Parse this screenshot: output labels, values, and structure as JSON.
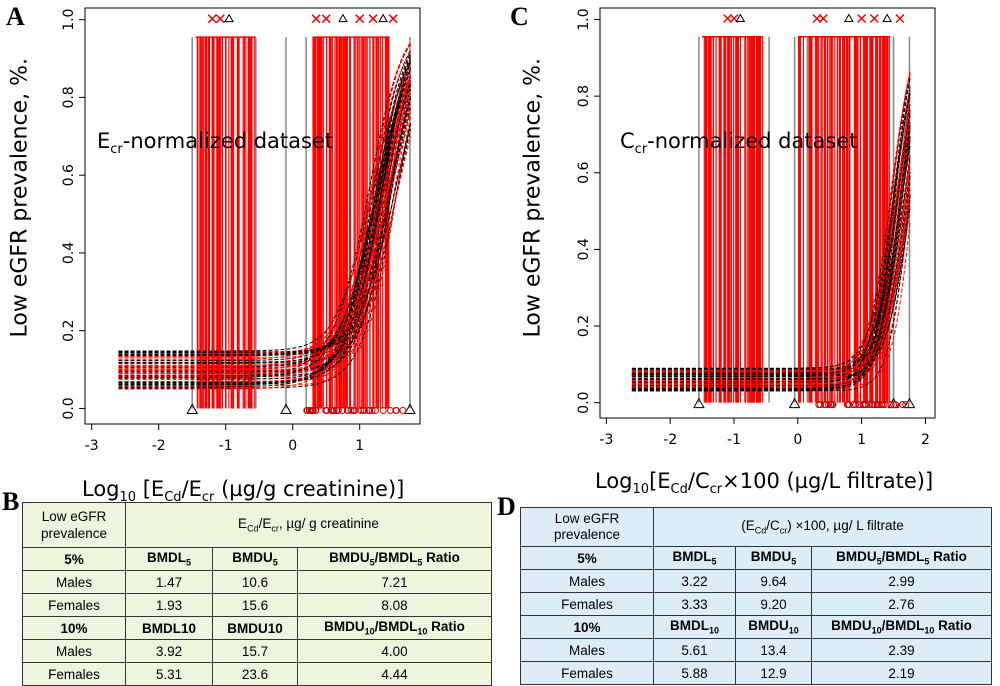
{
  "panels": {
    "a": {
      "letter": "A",
      "dataset_label_main": "E",
      "dataset_label_sub": "cr",
      "dataset_label_rest": "-normalized dataset"
    },
    "c": {
      "letter": "C",
      "dataset_label_main": "C",
      "dataset_label_sub": "cr",
      "dataset_label_rest": "-normalized dataset"
    },
    "b": {
      "letter": "B"
    },
    "d": {
      "letter": "D"
    }
  },
  "axis_labels": {
    "y": "Low eGFR prevalence, %.",
    "a_x": {
      "prefix": "Log",
      "sub10": "10",
      "mid": " [E",
      "sub1": "Cd",
      "mid2": "/E",
      "sub2": "cr",
      "rest": " (µg/g creatinine)]"
    },
    "c_x": {
      "prefix": "Log",
      "sub10": "10",
      "mid": "[E",
      "sub1": "Cd",
      "mid2": "/C",
      "sub2": "cr",
      "rest": "×100 (µg/L filtrate)]"
    }
  },
  "chart_data": [
    {
      "type": "line",
      "panel": "A",
      "title": "Ecr-normalized dataset",
      "xlabel": "Log10 [ECd/Ecr (µg/g creatinine)]",
      "ylabel": "Low eGFR prevalence, %.",
      "xlim": [
        -3.1,
        1.9
      ],
      "ylim": [
        -0.04,
        1.03
      ],
      "xticks": [
        -3,
        -2,
        -1,
        0,
        1
      ],
      "yticks": [
        0.0,
        0.2,
        0.4,
        0.6,
        0.8,
        1.0
      ],
      "xtick_labels": [
        "-3",
        "-2",
        "-1",
        "0",
        "1"
      ],
      "ytick_labels": [
        "0.0",
        "0.2",
        "0.4",
        "0.6",
        "0.8",
        "1.0"
      ],
      "curve_model": {
        "baseline_min": 0.05,
        "baseline_max": 0.15,
        "midpoint_range": [
          1.15,
          1.55
        ],
        "slope_range": [
          3.2,
          4.6
        ],
        "x_start": -2.6,
        "x_end": 1.78,
        "n_curves": 60
      },
      "red_bar_clusters": [
        [
          -1.45,
          -0.55
        ],
        [
          0.3,
          1.45
        ]
      ],
      "gray_bar_positions": [
        -1.5,
        -0.55,
        -0.1,
        0.2,
        1.75
      ],
      "bar_top": 0.955,
      "top_marker_x": [
        -1.2,
        -1.08,
        -0.95,
        0.35,
        0.5,
        0.75,
        1.0,
        1.2,
        1.35,
        1.5
      ],
      "bottom_triangle_x": [
        -1.5,
        -0.1,
        1.75
      ]
    },
    {
      "type": "line",
      "panel": "C",
      "title": "Ccr-normalized dataset",
      "xlabel": "Log10[ECd/Ccr×100 (µg/L filtrate)]",
      "ylabel": "Low eGFR prevalence, %.",
      "xlim": [
        -3.1,
        2.15
      ],
      "ylim": [
        -0.04,
        1.03
      ],
      "xticks": [
        -3,
        -2,
        -1,
        0,
        1,
        2
      ],
      "yticks": [
        0.0,
        0.2,
        0.4,
        0.6,
        0.8,
        1.0
      ],
      "xtick_labels": [
        "-3",
        "-2",
        "-1",
        "0",
        "1",
        "2"
      ],
      "ytick_labels": [
        "0.0",
        "0.2",
        "0.4",
        "0.6",
        "0.8",
        "1.0"
      ],
      "curve_model": {
        "baseline_min": 0.03,
        "baseline_max": 0.09,
        "midpoint_range": [
          1.45,
          1.8
        ],
        "slope_range": [
          4.5,
          6.5
        ],
        "x_start": -2.6,
        "x_end": 1.78,
        "n_curves": 60
      },
      "red_bar_clusters": [
        [
          -1.5,
          -0.55
        ],
        [
          0.0,
          1.45
        ]
      ],
      "gray_bar_positions": [
        -1.55,
        -0.45,
        -0.05,
        0.15,
        1.5,
        1.75
      ],
      "bar_top": 0.955,
      "top_marker_x": [
        -1.1,
        -1.0,
        -0.9,
        0.3,
        0.4,
        0.8,
        1.0,
        1.2,
        1.4,
        1.6
      ],
      "bottom_triangle_x": [
        -1.55,
        -0.05,
        1.5,
        1.75
      ]
    }
  ],
  "table_b": {
    "header_left_line1": "Low eGFR",
    "header_left_line2": "prevalence",
    "header_right": {
      "pre": "E",
      "sub1": "Cd",
      "mid": "/E",
      "sub2": "cr",
      "rest": ", µg/ g creatinine"
    },
    "section_5": {
      "label": "5%",
      "col1": {
        "base": "BMDL",
        "sub": "5"
      },
      "col2": {
        "base": "BMDU",
        "sub": "5"
      },
      "col3": {
        "a": "BMDU",
        "sa": "5",
        "b": "/BMDL",
        "sb": "5",
        "c": " Ratio"
      }
    },
    "rows_5": [
      {
        "group": "Males",
        "bmdl": "1.47",
        "bmdu": "10.6",
        "ratio": "7.21"
      },
      {
        "group": "Females",
        "bmdl": "1.93",
        "bmdu": "15.6",
        "ratio": "8.08"
      }
    ],
    "section_10": {
      "label": "10%",
      "col1": "BMDL10",
      "col2": "BMDU10",
      "col3": {
        "a": "BMDU",
        "sa": "10",
        "b": "/BMDL",
        "sb": "10",
        "c": " Ratio"
      }
    },
    "rows_10": [
      {
        "group": "Males",
        "bmdl": "3.92",
        "bmdu": "15.7",
        "ratio": "4.00"
      },
      {
        "group": "Females",
        "bmdl": "5.31",
        "bmdu": "23.6",
        "ratio": "4.44"
      }
    ]
  },
  "table_d": {
    "header_left_line1": "Low eGFR",
    "header_left_line2": "prevalence",
    "header_right": {
      "pre": "(E",
      "sub1": "Cd",
      "mid": "/C",
      "sub2": "cr",
      "rest": ") ×100,  µg/ L filtrate"
    },
    "section_5": {
      "label": "5%",
      "col1": {
        "base": "BMDL",
        "sub": "5"
      },
      "col2": {
        "base": "BMDU",
        "sub": "5"
      },
      "col3": {
        "a": "BMDU",
        "sa": "5",
        "b": "/BMDL",
        "sb": "5",
        "c": " Ratio"
      }
    },
    "rows_5": [
      {
        "group": "Males",
        "bmdl": "3.22",
        "bmdu": "9.64",
        "ratio": "2.99"
      },
      {
        "group": "Females",
        "bmdl": "3.33",
        "bmdu": "9.20",
        "ratio": "2.76"
      }
    ],
    "section_10": {
      "label": "10%",
      "col1": {
        "base": "BMDL",
        "sub": "10"
      },
      "col2": {
        "base": "BMDU",
        "sub": "10"
      },
      "col3": {
        "a": "BMDU",
        "sa": "10",
        "b": "/BMDL",
        "sb": "10",
        "c": " Ratio"
      }
    },
    "rows_10": [
      {
        "group": "Males",
        "bmdl": "5.61",
        "bmdu": "13.4",
        "ratio": "2.39"
      },
      {
        "group": "Females",
        "bmdl": "5.88",
        "bmdu": "12.9",
        "ratio": "2.19"
      }
    ]
  },
  "colors": {
    "red": "#ff0000",
    "dark_red": "#cc0000",
    "black": "#000000",
    "gray": "#888888",
    "table_b_bg": "#eef5dd",
    "table_d_bg": "#dbeef7"
  }
}
